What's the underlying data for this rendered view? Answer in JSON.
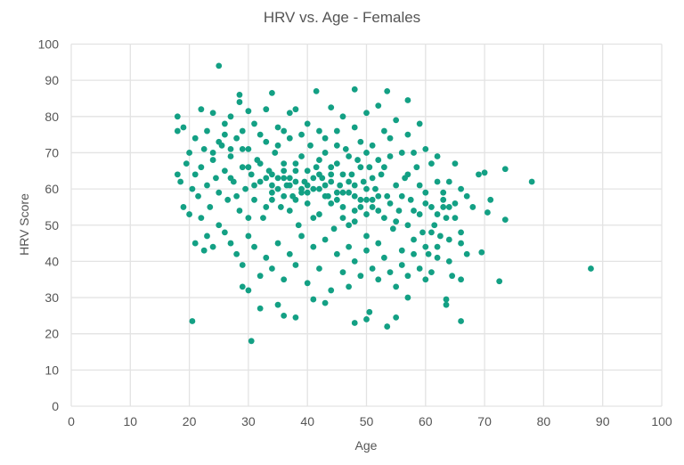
{
  "chart_data": {
    "type": "scatter",
    "title": "HRV vs. Age - Females",
    "xlabel": "Age",
    "ylabel": "HRV Score",
    "xlim": [
      0,
      100
    ],
    "ylim": [
      0,
      100
    ],
    "xticks": [
      "0",
      "10",
      "20",
      "30",
      "40",
      "50",
      "60",
      "70",
      "80",
      "90",
      "100"
    ],
    "yticks": [
      "0",
      "10",
      "20",
      "30",
      "40",
      "50",
      "60",
      "70",
      "80",
      "90",
      "100"
    ],
    "grid": true,
    "legend": "none",
    "color": "#13a084",
    "points": [
      [
        25,
        94
      ],
      [
        28.5,
        86
      ],
      [
        28.5,
        84
      ],
      [
        34,
        86.5
      ],
      [
        41.5,
        87
      ],
      [
        48,
        87.5
      ],
      [
        53.5,
        87
      ],
      [
        57,
        84.5
      ],
      [
        88,
        38
      ],
      [
        78,
        62
      ],
      [
        73.5,
        65.5
      ],
      [
        73.5,
        51.5
      ],
      [
        72.5,
        34.5
      ],
      [
        70,
        64.5
      ],
      [
        69,
        64
      ],
      [
        69.5,
        42.5
      ],
      [
        71,
        57
      ],
      [
        70.5,
        53.5
      ],
      [
        66,
        23.5
      ],
      [
        64.5,
        36
      ],
      [
        66,
        35
      ],
      [
        20.5,
        23.5
      ],
      [
        30.5,
        18
      ],
      [
        36,
        25
      ],
      [
        38,
        24.5
      ],
      [
        48,
        23
      ],
      [
        50,
        24
      ],
      [
        53.5,
        22
      ],
      [
        55,
        24.5
      ],
      [
        50.5,
        26
      ],
      [
        32,
        27
      ],
      [
        35,
        28
      ],
      [
        43,
        28.5
      ],
      [
        41,
        29.5
      ],
      [
        18,
        80
      ],
      [
        18,
        76
      ],
      [
        18,
        64
      ],
      [
        19,
        55
      ],
      [
        21,
        45
      ],
      [
        22.5,
        43
      ],
      [
        20,
        53
      ],
      [
        29,
        33
      ],
      [
        30,
        32
      ],
      [
        47,
        33
      ],
      [
        57,
        30
      ],
      [
        60,
        35
      ],
      [
        63.5,
        29.5
      ],
      [
        63.5,
        28
      ],
      [
        22,
        82
      ],
      [
        24,
        81
      ],
      [
        27,
        80
      ],
      [
        30,
        81.5
      ],
      [
        33,
        82
      ],
      [
        37,
        81
      ],
      [
        38,
        82
      ],
      [
        44,
        82.5
      ],
      [
        46,
        80
      ],
      [
        50,
        81
      ],
      [
        52,
        83
      ],
      [
        55,
        79
      ],
      [
        59,
        78
      ],
      [
        26,
        78
      ],
      [
        19,
        77
      ],
      [
        21,
        74
      ],
      [
        23,
        76
      ],
      [
        25,
        73
      ],
      [
        31,
        78
      ],
      [
        35,
        77
      ],
      [
        40,
        78
      ],
      [
        42,
        76
      ],
      [
        48,
        77
      ],
      [
        53,
        76
      ],
      [
        57,
        75
      ],
      [
        60,
        71
      ],
      [
        62,
        69
      ],
      [
        65,
        67
      ],
      [
        64,
        62
      ],
      [
        66,
        60
      ],
      [
        67,
        58
      ],
      [
        68,
        55
      ],
      [
        63,
        55
      ],
      [
        65,
        52
      ],
      [
        66,
        48
      ],
      [
        64,
        46
      ],
      [
        66,
        45
      ],
      [
        67,
        42
      ],
      [
        62,
        41
      ],
      [
        60,
        44
      ],
      [
        18.5,
        62
      ],
      [
        19.5,
        67
      ],
      [
        20,
        70
      ],
      [
        20.5,
        60
      ],
      [
        21,
        64
      ],
      [
        21.5,
        58
      ],
      [
        22,
        66
      ],
      [
        22.5,
        71
      ],
      [
        23,
        61
      ],
      [
        23.5,
        55
      ],
      [
        24,
        68
      ],
      [
        24.5,
        63
      ],
      [
        25,
        59
      ],
      [
        25.5,
        72
      ],
      [
        26,
        65
      ],
      [
        26.5,
        57
      ],
      [
        27,
        69
      ],
      [
        27.5,
        62
      ],
      [
        28,
        74
      ],
      [
        28.5,
        54
      ],
      [
        29,
        66
      ],
      [
        29.5,
        60
      ],
      [
        30,
        71
      ],
      [
        30.5,
        64
      ],
      [
        31,
        57
      ],
      [
        31.5,
        68
      ],
      [
        32,
        62
      ],
      [
        32.5,
        52
      ],
      [
        33,
        73
      ],
      [
        33.5,
        65
      ],
      [
        34,
        59
      ],
      [
        34.5,
        70
      ],
      [
        35,
        63
      ],
      [
        35.5,
        55
      ],
      [
        36,
        67
      ],
      [
        36.5,
        61
      ],
      [
        37,
        74
      ],
      [
        37.5,
        58
      ],
      [
        38,
        65
      ],
      [
        38.5,
        50
      ],
      [
        39,
        69
      ],
      [
        39.5,
        62
      ],
      [
        40,
        56
      ],
      [
        40.5,
        72
      ],
      [
        41,
        60
      ],
      [
        41.5,
        66
      ],
      [
        42,
        53
      ],
      [
        42.5,
        63
      ],
      [
        43,
        70
      ],
      [
        43.5,
        58
      ],
      [
        44,
        64
      ],
      [
        44.5,
        49
      ],
      [
        45,
        67
      ],
      [
        45.5,
        61
      ],
      [
        46,
        55
      ],
      [
        46.5,
        71
      ],
      [
        47,
        59
      ],
      [
        47.5,
        64
      ],
      [
        48,
        51
      ],
      [
        48.5,
        68
      ],
      [
        49,
        57
      ],
      [
        49.5,
        62
      ],
      [
        50,
        47
      ],
      [
        50.5,
        66
      ],
      [
        51,
        55
      ],
      [
        51.5,
        60
      ],
      [
        52,
        45
      ],
      [
        52.5,
        64
      ],
      [
        53,
        52
      ],
      [
        53.5,
        58
      ],
      [
        54,
        69
      ],
      [
        54.5,
        49
      ],
      [
        55,
        61
      ],
      [
        55.5,
        54
      ],
      [
        56,
        43
      ],
      [
        56.5,
        63
      ],
      [
        57,
        50
      ],
      [
        57.5,
        57
      ],
      [
        58,
        46
      ],
      [
        58.5,
        66
      ],
      [
        59,
        53
      ],
      [
        59.5,
        48
      ],
      [
        60,
        59
      ],
      [
        60.5,
        42
      ],
      [
        61,
        55
      ],
      [
        61.5,
        50
      ],
      [
        62,
        62
      ],
      [
        62.5,
        47
      ],
      [
        63,
        57
      ],
      [
        63.5,
        52
      ],
      [
        64,
        40
      ],
      [
        65,
        56
      ],
      [
        22,
        52
      ],
      [
        23,
        47
      ],
      [
        24,
        44
      ],
      [
        25,
        50
      ],
      [
        26,
        48
      ],
      [
        27,
        45
      ],
      [
        28,
        42
      ],
      [
        29,
        39
      ],
      [
        30,
        47
      ],
      [
        31,
        44
      ],
      [
        32,
        36
      ],
      [
        33,
        41
      ],
      [
        34,
        38
      ],
      [
        35,
        45
      ],
      [
        36,
        35
      ],
      [
        37,
        42
      ],
      [
        38,
        39
      ],
      [
        39,
        47
      ],
      [
        40,
        34
      ],
      [
        41,
        44
      ],
      [
        42,
        38
      ],
      [
        43,
        46
      ],
      [
        44,
        32
      ],
      [
        45,
        42
      ],
      [
        46,
        37
      ],
      [
        47,
        44
      ],
      [
        48,
        40
      ],
      [
        49,
        36
      ],
      [
        50,
        43
      ],
      [
        51,
        38
      ],
      [
        52,
        35
      ],
      [
        53,
        41
      ],
      [
        54,
        37
      ],
      [
        55,
        33
      ],
      [
        56,
        39
      ],
      [
        57,
        36
      ],
      [
        58,
        42
      ],
      [
        59,
        38
      ],
      [
        61,
        37
      ],
      [
        62,
        44
      ],
      [
        27,
        63
      ],
      [
        28,
        58
      ],
      [
        29,
        71
      ],
      [
        30,
        52
      ],
      [
        31,
        61
      ],
      [
        32,
        67
      ],
      [
        33,
        55
      ],
      [
        34,
        64
      ],
      [
        35,
        72
      ],
      [
        36,
        58
      ],
      [
        37,
        63
      ],
      [
        38,
        57
      ],
      [
        39,
        60
      ],
      [
        40,
        65
      ],
      [
        41,
        52
      ],
      [
        42,
        68
      ],
      [
        43,
        61
      ],
      [
        44,
        56
      ],
      [
        45,
        59
      ],
      [
        46,
        64
      ],
      [
        47,
        50
      ],
      [
        48,
        61
      ],
      [
        49,
        66
      ],
      [
        50,
        53
      ],
      [
        51,
        63
      ],
      [
        52,
        58
      ],
      [
        53,
        66
      ],
      [
        54,
        56
      ],
      [
        55,
        51
      ],
      [
        56,
        58
      ],
      [
        57,
        64
      ],
      [
        58,
        54
      ],
      [
        59,
        61
      ],
      [
        60,
        56
      ],
      [
        61,
        48
      ],
      [
        62,
        53
      ],
      [
        63,
        59
      ],
      [
        64,
        55
      ],
      [
        33,
        63
      ],
      [
        34,
        61
      ],
      [
        35,
        60
      ],
      [
        36,
        63
      ],
      [
        37,
        61
      ],
      [
        38,
        62
      ],
      [
        39,
        59
      ],
      [
        40,
        61
      ],
      [
        41,
        63
      ],
      [
        42,
        60
      ],
      [
        43,
        58
      ],
      [
        44,
        62
      ],
      [
        45,
        57
      ],
      [
        46,
        59
      ],
      [
        47,
        62
      ],
      [
        48,
        58
      ],
      [
        49,
        55
      ],
      [
        50,
        60
      ],
      [
        51,
        57
      ],
      [
        52,
        54
      ],
      [
        36,
        65
      ],
      [
        38,
        67
      ],
      [
        40,
        59
      ],
      [
        42,
        64
      ],
      [
        44,
        66
      ],
      [
        46,
        52
      ],
      [
        48,
        54
      ],
      [
        50,
        57
      ],
      [
        34,
        57
      ],
      [
        37,
        54
      ],
      [
        26,
        75
      ],
      [
        29,
        76
      ],
      [
        32,
        75
      ],
      [
        36,
        76
      ],
      [
        39,
        75
      ],
      [
        43,
        74
      ],
      [
        45,
        76
      ],
      [
        49,
        73
      ],
      [
        51,
        72
      ],
      [
        54,
        74
      ],
      [
        56,
        70
      ],
      [
        58,
        70
      ],
      [
        61,
        67
      ],
      [
        24,
        70
      ],
      [
        27,
        71
      ],
      [
        30,
        66
      ],
      [
        45,
        72
      ],
      [
        47,
        69
      ],
      [
        50,
        70
      ],
      [
        52,
        68
      ]
    ]
  }
}
